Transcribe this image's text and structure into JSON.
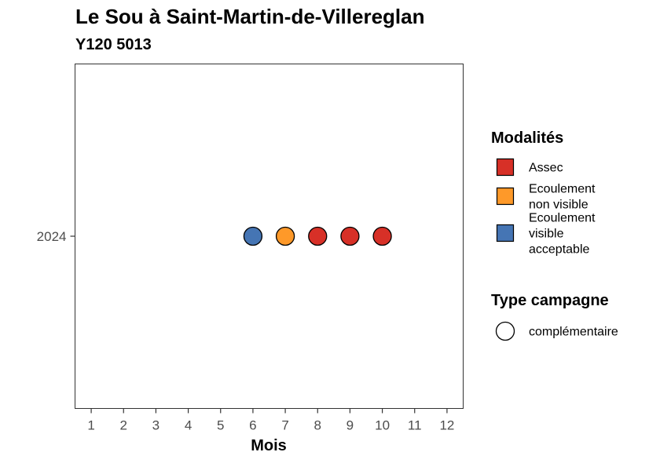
{
  "chart_data": {
    "type": "scatter",
    "title": "Le Sou à Saint-Martin-de-Villereglan",
    "subtitle": "Y120 5013",
    "xlabel": "Mois",
    "ylabel": "",
    "x_ticks": [
      "1",
      "2",
      "3",
      "4",
      "5",
      "6",
      "7",
      "8",
      "9",
      "10",
      "11",
      "12"
    ],
    "xlim": [
      0.5,
      12.5
    ],
    "y_categories": [
      "2024"
    ],
    "grid": false,
    "legend_position": "right",
    "points": [
      {
        "month": 6,
        "year": "2024",
        "modalite": "Ecoulement visible acceptable",
        "campagne": "complémentaire"
      },
      {
        "month": 7,
        "year": "2024",
        "modalite": "Ecoulement non visible",
        "campagne": "complémentaire"
      },
      {
        "month": 8,
        "year": "2024",
        "modalite": "Assec",
        "campagne": "complémentaire"
      },
      {
        "month": 9,
        "year": "2024",
        "modalite": "Assec",
        "campagne": "complémentaire"
      },
      {
        "month": 10,
        "year": "2024",
        "modalite": "Assec",
        "campagne": "complémentaire"
      }
    ],
    "legend_modalites": {
      "title": "Modalités",
      "items": [
        {
          "lines": [
            "Assec"
          ],
          "key": "Assec",
          "color": "#D73027"
        },
        {
          "lines": [
            "Ecoulement",
            "non visible"
          ],
          "key": "Ecoulement non visible",
          "color": "#FE9929"
        },
        {
          "lines": [
            "Ecoulement",
            "visible",
            "acceptable"
          ],
          "key": "Ecoulement visible acceptable",
          "color": "#4575B4"
        }
      ]
    },
    "legend_campagne": {
      "title": "Type campagne",
      "items": [
        {
          "label": "complémentaire",
          "shape": "circle"
        }
      ]
    }
  }
}
